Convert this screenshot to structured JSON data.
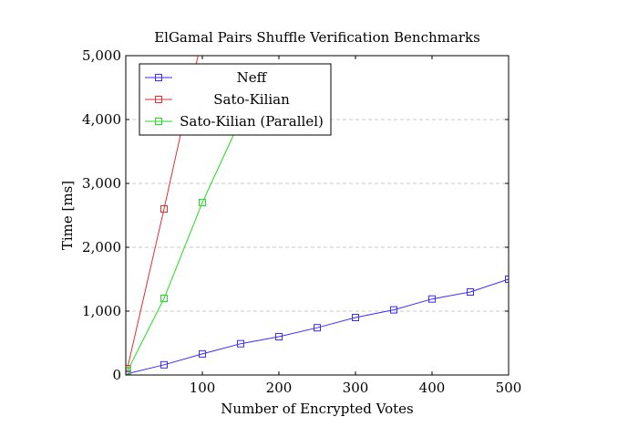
{
  "chart_data": {
    "type": "line",
    "title": "ElGamal Pairs Shuffle Verification Benchmarks",
    "xlabel": "Number of Encrypted Votes",
    "ylabel": "Time [ms]",
    "xlim": [
      0,
      500
    ],
    "ylim": [
      0,
      5000
    ],
    "x_ticks": [
      100,
      200,
      300,
      400,
      500
    ],
    "x_tick_labels": [
      "100",
      "200",
      "300",
      "400",
      "500"
    ],
    "y_ticks": [
      0,
      1000,
      2000,
      3000,
      4000,
      5000
    ],
    "y_tick_labels": [
      "0",
      "1,000",
      "2,000",
      "3,000",
      "4,000",
      "5,000"
    ],
    "grid": "horizontal dashed",
    "legend_position": "top-left",
    "series": [
      {
        "name": "Neff",
        "color": "#3b2bff",
        "marker": "square",
        "x": [
          2,
          50,
          100,
          150,
          200,
          250,
          300,
          350,
          400,
          450,
          500
        ],
        "y": [
          20,
          160,
          330,
          490,
          600,
          740,
          900,
          1020,
          1190,
          1300,
          1500
        ]
      },
      {
        "name": "Sato-Kilian",
        "color": "#e03030",
        "marker": "square",
        "x": [
          2,
          50,
          100
        ],
        "y": [
          100,
          2600,
          5300
        ]
      },
      {
        "name": "Sato-Kilian (Parallel)",
        "color": "#22dd22",
        "marker": "square",
        "x": [
          2,
          50,
          100,
          150
        ],
        "y": [
          60,
          1200,
          2700,
          4000
        ]
      }
    ]
  }
}
